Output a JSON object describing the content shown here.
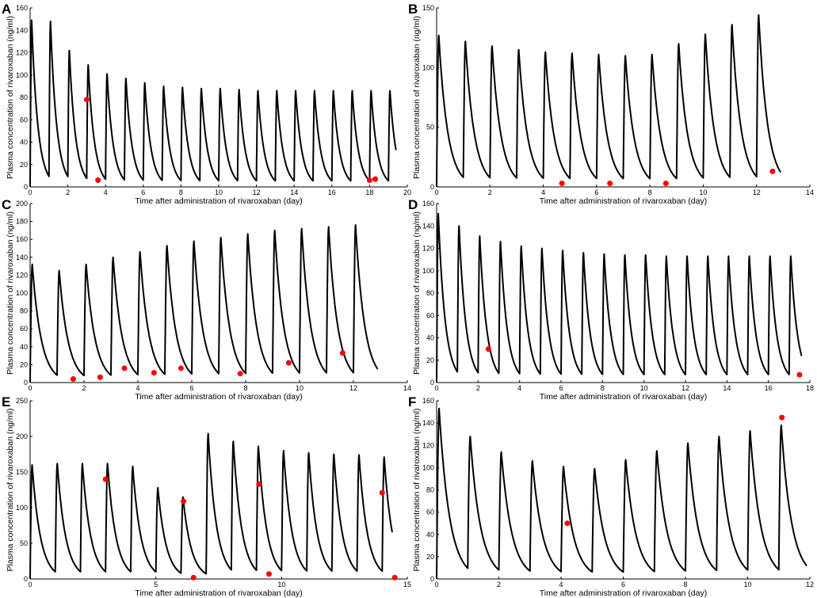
{
  "figure": {
    "xlabel": "Time after administration of rivaroxaban (day)",
    "ylabel": "Plasma concentration of rivaroxaban (ng/ml)"
  },
  "chart_data": [
    {
      "panel": "A",
      "type": "line",
      "xlabel": "Time after administration of rivaroxaban (day)",
      "ylabel": "Plasma concentration of rivaroxaban (ng/ml)",
      "xlim": [
        0,
        20
      ],
      "ylim": [
        0,
        160
      ],
      "xticks": [
        0,
        2,
        4,
        6,
        8,
        10,
        12,
        14,
        16,
        18,
        20
      ],
      "yticks": [
        0,
        20,
        40,
        60,
        80,
        100,
        120,
        140,
        160
      ],
      "simulation": {
        "doses": [
          0,
          1,
          2,
          3,
          4,
          5,
          6,
          7,
          8,
          9,
          10,
          11,
          12,
          13,
          14,
          15,
          16,
          17,
          18,
          19
        ],
        "peaks": [
          149,
          148,
          122,
          109,
          101,
          97,
          93,
          90,
          89,
          88,
          88,
          87,
          86,
          86,
          86,
          86,
          86,
          86,
          86,
          86
        ],
        "end": 19.4,
        "tail": 58
      },
      "observed": {
        "x": [
          3.0,
          3.6,
          18.0,
          18.3
        ],
        "y": [
          78,
          6,
          6,
          7
        ]
      }
    },
    {
      "panel": "B",
      "type": "line",
      "xlabel": "Time after administration of rivaroxaban (day)",
      "ylabel": "Plasma concentration of rivaroxaban (ng/ml)",
      "xlim": [
        0,
        14
      ],
      "ylim": [
        0,
        150
      ],
      "xticks": [
        0,
        2,
        4,
        6,
        8,
        10,
        12,
        14
      ],
      "yticks": [
        0,
        50,
        100,
        150
      ],
      "simulation": {
        "doses": [
          0,
          1,
          2,
          3,
          4,
          5,
          6,
          7,
          8,
          9,
          10,
          11,
          12
        ],
        "peaks": [
          127,
          122,
          118,
          115,
          113,
          112,
          111,
          110,
          111,
          120,
          128,
          136,
          144
        ],
        "end": 12.9,
        "tail": 3
      },
      "observed": {
        "x": [
          4.7,
          6.5,
          8.6,
          12.6
        ],
        "y": [
          3,
          3,
          3,
          13
        ]
      }
    },
    {
      "panel": "C",
      "type": "line",
      "xlabel": "Time after administration of rivaroxaban (day)",
      "ylabel": "Plasma concentration of rivaroxaban (ng/ml)",
      "xlim": [
        0,
        14
      ],
      "ylim": [
        0,
        200
      ],
      "xticks": [
        0,
        2,
        4,
        6,
        8,
        10,
        12,
        14
      ],
      "yticks": [
        0,
        20,
        40,
        60,
        80,
        100,
        120,
        140,
        160,
        180,
        200
      ],
      "simulation": {
        "doses": [
          0,
          1,
          2,
          3,
          4,
          5,
          6,
          7,
          8,
          9,
          10,
          11,
          12
        ],
        "peaks": [
          132,
          125,
          132,
          140,
          146,
          153,
          158,
          162,
          166,
          170,
          172,
          174,
          176
        ],
        "end": 12.9,
        "tail": 8
      },
      "observed": {
        "x": [
          1.6,
          2.6,
          3.5,
          4.6,
          5.6,
          7.8,
          9.6,
          11.6
        ],
        "y": [
          4,
          6,
          16,
          11,
          16,
          10,
          22,
          33
        ]
      }
    },
    {
      "panel": "D",
      "type": "line",
      "xlabel": "Time after administration of rivaroxaban (day)",
      "ylabel": "Plasma concentration of rivaroxaban (ng/ml)",
      "xlim": [
        0,
        18
      ],
      "ylim": [
        0,
        160
      ],
      "xticks": [
        0,
        2,
        4,
        6,
        8,
        10,
        12,
        14,
        16,
        18
      ],
      "yticks": [
        0,
        20,
        40,
        60,
        80,
        100,
        120,
        140,
        160
      ],
      "simulation": {
        "doses": [
          0,
          1,
          2,
          3,
          4,
          5,
          6,
          7,
          8,
          9,
          10,
          11,
          12,
          13,
          14,
          15,
          16,
          17
        ],
        "peaks": [
          151,
          140,
          131,
          126,
          122,
          120,
          118,
          116,
          115,
          114,
          114,
          113,
          113,
          113,
          113,
          113,
          113,
          113
        ],
        "end": 17.6,
        "tail": 6
      },
      "observed": {
        "x": [
          2.5,
          17.5
        ],
        "y": [
          30,
          7
        ]
      }
    },
    {
      "panel": "E",
      "type": "line",
      "xlabel": "Time after administration of rivaroxaban (day)",
      "ylabel": "Plasma concentration of rivaroxaban (ng/ml)",
      "xlim": [
        0,
        15
      ],
      "ylim": [
        0,
        250
      ],
      "xticks": [
        0,
        5,
        10,
        15
      ],
      "yticks": [
        0,
        50,
        100,
        150,
        200,
        250
      ],
      "simulation": {
        "doses": [
          0,
          1,
          2,
          3,
          4,
          5,
          6,
          7,
          8,
          9,
          10,
          11,
          12,
          13,
          14
        ],
        "peaks": [
          160,
          162,
          162,
          162,
          158,
          128,
          115,
          204,
          193,
          186,
          180,
          177,
          175,
          174,
          171
        ],
        "end": 14.4,
        "tail": 5
      },
      "observed": {
        "x": [
          3.0,
          6.1,
          6.5,
          9.1,
          9.5,
          14.0,
          14.5
        ],
        "y": [
          140,
          109,
          2,
          133,
          7,
          121,
          2
        ]
      }
    },
    {
      "panel": "F",
      "type": "line",
      "xlabel": "Time after administration of rivaroxaban (day)",
      "ylabel": "Plasma concentration of rivaroxaban (ng/ml)",
      "xlim": [
        0,
        12
      ],
      "ylim": [
        0,
        160
      ],
      "xticks": [
        0,
        2,
        4,
        6,
        8,
        10,
        12
      ],
      "yticks": [
        0,
        20,
        40,
        60,
        80,
        100,
        120,
        140,
        160
      ],
      "simulation": {
        "doses": [
          0,
          1,
          2,
          3,
          4,
          5,
          6,
          7,
          8,
          9,
          10,
          11
        ],
        "peaks": [
          153,
          128,
          114,
          106,
          101,
          99,
          107,
          115,
          122,
          128,
          133,
          138
        ],
        "end": 11.9,
        "tail": 3
      },
      "observed": {
        "x": [
          4.2,
          11.1
        ],
        "y": [
          50,
          145
        ]
      }
    }
  ],
  "colors": {
    "simulation": "#000000",
    "observed": "#ff0000"
  }
}
